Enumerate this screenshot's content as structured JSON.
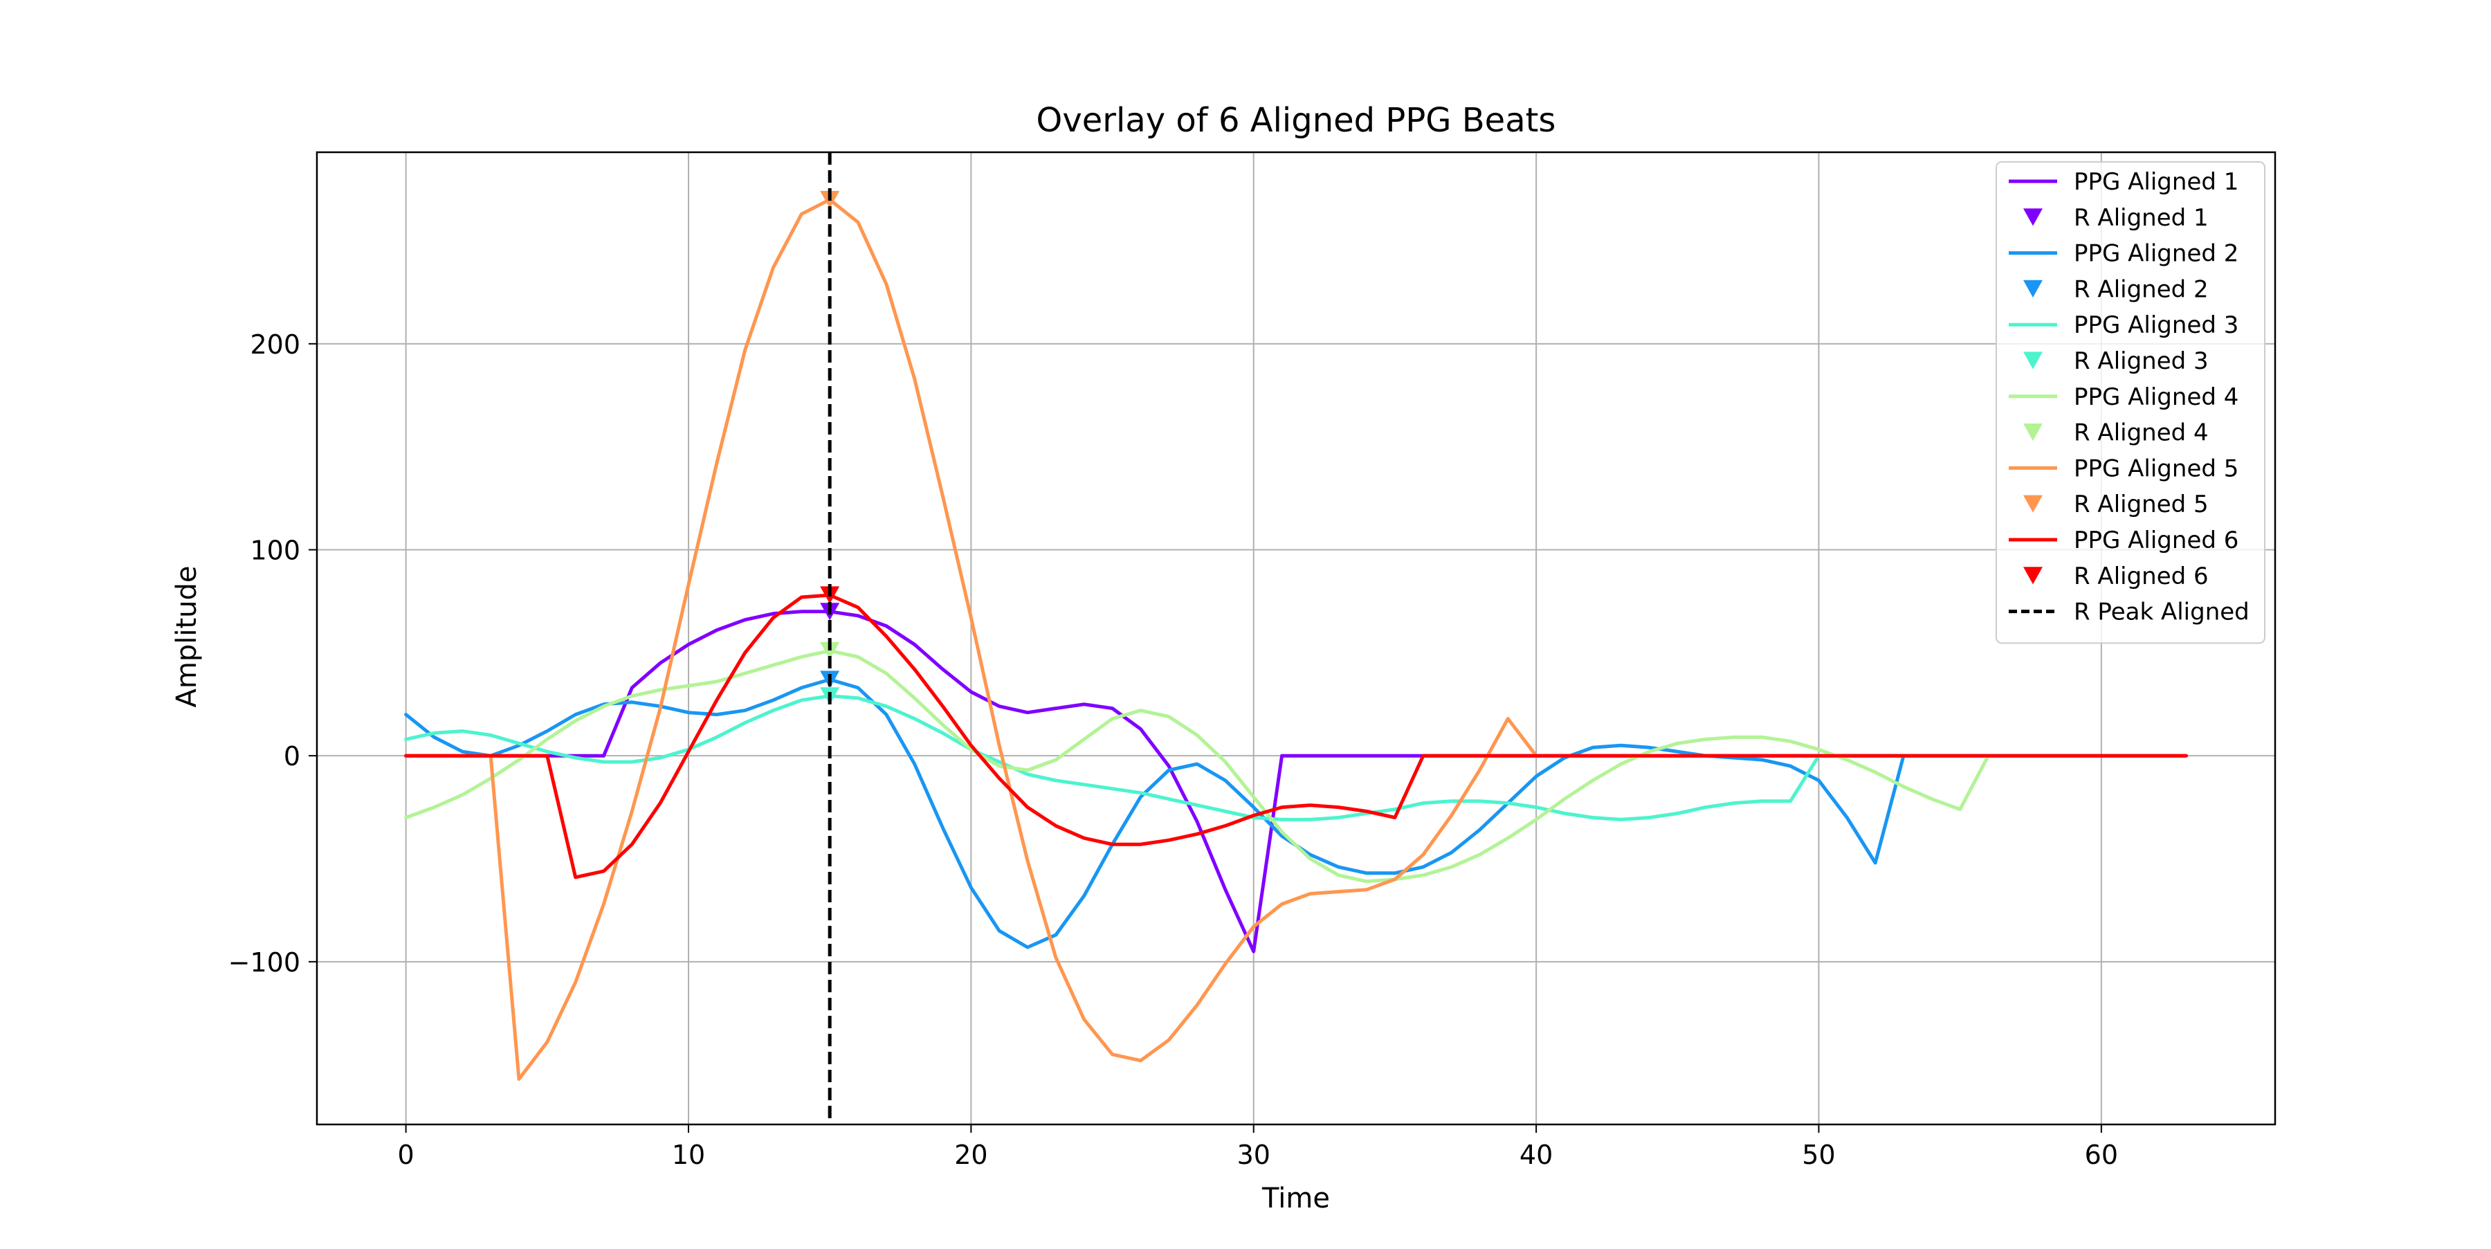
{
  "chart_data": {
    "type": "line",
    "title": "Overlay of 6 Aligned PPG Beats",
    "xlabel": "Time",
    "ylabel": "Amplitude",
    "xlim": [
      -3.15,
      66.15
    ],
    "ylim": [
      -179,
      293
    ],
    "xticks": [
      0,
      10,
      20,
      30,
      40,
      50,
      60
    ],
    "yticks": [
      -100,
      0,
      100,
      200
    ],
    "xtick_labels": [
      "0",
      "10",
      "20",
      "30",
      "40",
      "50",
      "60"
    ],
    "ytick_labels": [
      "−100",
      "0",
      "100",
      "200"
    ],
    "grid": true,
    "legend_position": "upper right",
    "r_peak_x": 15,
    "r_peak_label": "R Peak Aligned",
    "series": [
      {
        "name": "PPG Aligned 1",
        "marker_name": "R Aligned 1",
        "color": "#8000ff",
        "x": [
          0,
          1,
          2,
          3,
          4,
          5,
          6,
          7,
          8,
          9,
          10,
          11,
          12,
          13,
          14,
          15,
          16,
          17,
          18,
          19,
          20,
          21,
          22,
          23,
          24,
          25,
          26,
          27,
          28,
          29,
          30,
          31,
          32,
          33,
          34,
          35,
          36,
          37,
          38,
          39,
          40,
          41,
          42,
          43,
          44,
          45,
          46,
          47,
          48,
          49,
          50,
          51,
          52,
          53,
          54,
          55,
          56,
          57,
          58,
          59,
          60,
          61,
          62,
          63
        ],
        "y": [
          0,
          0,
          0,
          0,
          0,
          0,
          0,
          0,
          33,
          45,
          54,
          61,
          66,
          69,
          70,
          70,
          68,
          63,
          54,
          42,
          31,
          24,
          21,
          23,
          25,
          23,
          13,
          -5,
          -32,
          -65,
          -95,
          0,
          0,
          0,
          0,
          0,
          0,
          0,
          0,
          0,
          0,
          0,
          0,
          0,
          0,
          0,
          0,
          0,
          0,
          0,
          0,
          0,
          0,
          0,
          0,
          0,
          0,
          0,
          0,
          0,
          0,
          0,
          0,
          0
        ],
        "r_peak_value": 70
      },
      {
        "name": "PPG Aligned 2",
        "marker_name": "R Aligned 2",
        "color": "#1996f3",
        "x": [
          0,
          1,
          2,
          3,
          4,
          5,
          6,
          7,
          8,
          9,
          10,
          11,
          12,
          13,
          14,
          15,
          16,
          17,
          18,
          19,
          20,
          21,
          22,
          23,
          24,
          25,
          26,
          27,
          28,
          29,
          30,
          31,
          32,
          33,
          34,
          35,
          36,
          37,
          38,
          39,
          40,
          41,
          42,
          43,
          44,
          45,
          46,
          47,
          48,
          49,
          50,
          51,
          52,
          53
        ],
        "y": [
          20,
          9,
          2,
          0,
          5,
          12,
          20,
          25,
          26,
          24,
          21,
          20,
          22,
          27,
          33,
          37,
          33,
          20,
          -4,
          -35,
          -64,
          -85,
          -93,
          -87,
          -68,
          -43,
          -20,
          -7,
          -4,
          -12,
          -25,
          -39,
          -48,
          -54,
          -57,
          -57,
          -54,
          -47,
          -36,
          -23,
          -10,
          -1,
          4,
          5,
          4,
          2,
          0,
          -1,
          -2,
          -5,
          -12,
          -30,
          -52,
          0
        ],
        "r_peak_value": 37
      },
      {
        "name": "PPG Aligned 3",
        "marker_name": "R Aligned 3",
        "color": "#4df3ce",
        "x": [
          0,
          1,
          2,
          3,
          4,
          5,
          6,
          7,
          8,
          9,
          10,
          11,
          12,
          13,
          14,
          15,
          16,
          17,
          18,
          19,
          20,
          21,
          22,
          23,
          24,
          25,
          26,
          27,
          28,
          29,
          30,
          31,
          32,
          33,
          34,
          35,
          36,
          37,
          38,
          39,
          40,
          41,
          42,
          43,
          44,
          45,
          46,
          47,
          48,
          49,
          50
        ],
        "y": [
          8,
          11,
          12,
          10,
          6,
          2,
          -1,
          -3,
          -3,
          -1,
          3,
          9,
          16,
          22,
          27,
          29,
          28,
          24,
          18,
          11,
          3,
          -3,
          -9,
          -12,
          -14,
          -16,
          -18,
          -21,
          -24,
          -27,
          -30,
          -31,
          -31,
          -30,
          -28,
          -26,
          -23,
          -22,
          -22,
          -23,
          -25,
          -28,
          -30,
          -31,
          -30,
          -28,
          -25,
          -23,
          -22,
          -22,
          0
        ],
        "r_peak_value": 29
      },
      {
        "name": "PPG Aligned 4",
        "marker_name": "R Aligned 4",
        "color": "#b3f396",
        "x": [
          0,
          1,
          2,
          3,
          4,
          5,
          6,
          7,
          8,
          9,
          10,
          11,
          12,
          13,
          14,
          15,
          16,
          17,
          18,
          19,
          20,
          21,
          22,
          23,
          24,
          25,
          26,
          27,
          28,
          29,
          30,
          31,
          32,
          33,
          34,
          35,
          36,
          37,
          38,
          39,
          40,
          41,
          42,
          43,
          44,
          45,
          46,
          47,
          48,
          49,
          50,
          51,
          52,
          53,
          54,
          55,
          56
        ],
        "y": [
          -30,
          -25,
          -19,
          -11,
          -2,
          8,
          17,
          24,
          29,
          32,
          34,
          36,
          40,
          44,
          48,
          51,
          48,
          40,
          28,
          15,
          3,
          -5,
          -7,
          -2,
          8,
          18,
          22,
          19,
          10,
          -3,
          -20,
          -37,
          -50,
          -58,
          -61,
          -60,
          -58,
          -54,
          -48,
          -40,
          -31,
          -21,
          -12,
          -4,
          2,
          6,
          8,
          9,
          9,
          7,
          3,
          -2,
          -8,
          -15,
          -21,
          -26,
          0
        ],
        "r_peak_value": 51
      },
      {
        "name": "PPG Aligned 5",
        "marker_name": "R Aligned 5",
        "color": "#ff964f",
        "x": [
          0,
          1,
          2,
          3,
          4,
          5,
          6,
          7,
          8,
          9,
          10,
          11,
          12,
          13,
          14,
          15,
          16,
          17,
          18,
          19,
          20,
          21,
          22,
          23,
          24,
          25,
          26,
          27,
          28,
          29,
          30,
          31,
          32,
          33,
          34,
          35,
          36,
          37,
          38,
          39,
          40
        ],
        "y": [
          0,
          0,
          0,
          0,
          -157,
          -139,
          -110,
          -72,
          -27,
          23,
          83,
          142,
          197,
          237,
          263,
          270,
          259,
          229,
          183,
          126,
          67,
          5,
          -51,
          -98,
          -128,
          -145,
          -148,
          -138,
          -121,
          -101,
          -83,
          -72,
          -67,
          -66,
          -65,
          -60,
          -48,
          -29,
          -7,
          18,
          0
        ],
        "r_peak_value": 270
      },
      {
        "name": "PPG Aligned 6",
        "marker_name": "R Aligned 6",
        "color": "#ff0000",
        "x": [
          0,
          1,
          2,
          3,
          4,
          5,
          6,
          7,
          8,
          9,
          10,
          11,
          12,
          13,
          14,
          15,
          16,
          17,
          18,
          19,
          20,
          21,
          22,
          23,
          24,
          25,
          26,
          27,
          28,
          29,
          30,
          31,
          32,
          33,
          34,
          35,
          36,
          37,
          38,
          39,
          40,
          41,
          42,
          43,
          44,
          45,
          46,
          47,
          48,
          49,
          50,
          51,
          52,
          53,
          54,
          55,
          56,
          57,
          58,
          59,
          60,
          61,
          62,
          63
        ],
        "y": [
          0,
          0,
          0,
          0,
          0,
          0,
          -59,
          -56,
          -43,
          -23,
          2,
          27,
          50,
          67,
          77,
          78,
          72,
          58,
          42,
          24,
          5,
          -11,
          -25,
          -34,
          -40,
          -43,
          -43,
          -41,
          -38,
          -34,
          -29,
          -25,
          -24,
          -25,
          -27,
          -30,
          0,
          0,
          0,
          0,
          0,
          0,
          0,
          0,
          0,
          0,
          0,
          0,
          0,
          0,
          0,
          0,
          0,
          0,
          0,
          0,
          0,
          0,
          0,
          0,
          0,
          0,
          0,
          0
        ],
        "r_peak_value": 78
      }
    ]
  }
}
